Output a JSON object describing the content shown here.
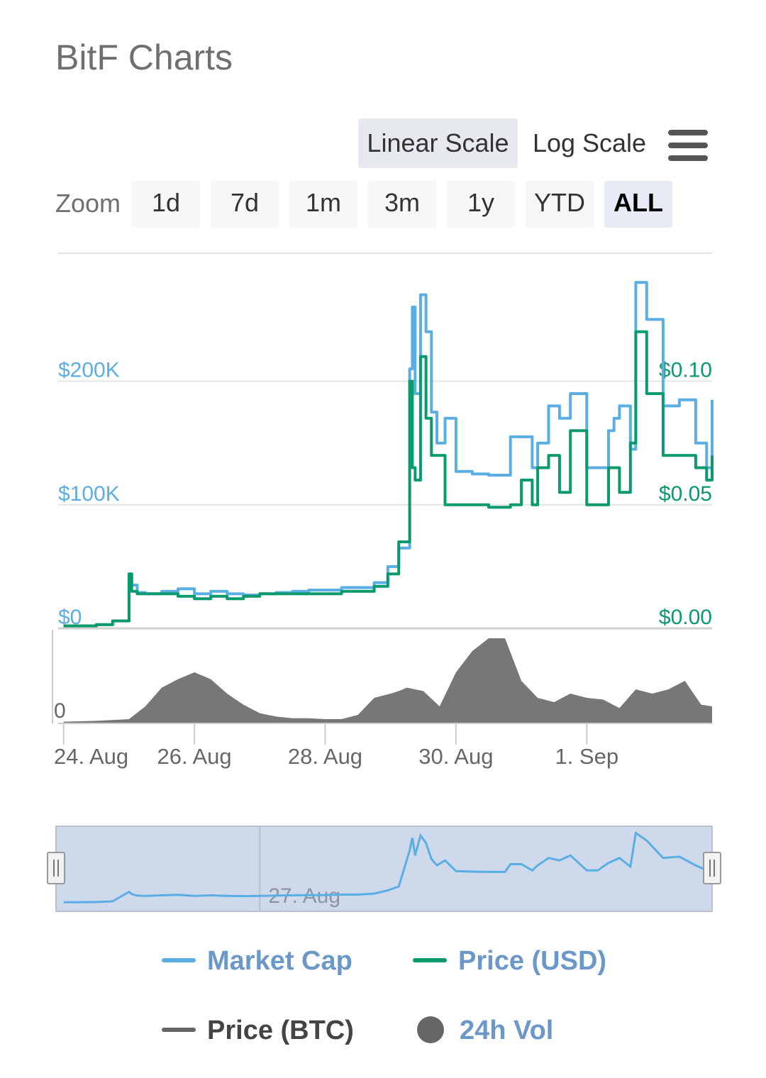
{
  "page": {
    "title": "BitF Charts"
  },
  "controls": {
    "scale_buttons": [
      {
        "label": "Linear Scale",
        "active": true
      },
      {
        "label": "Log Scale",
        "active": false
      }
    ],
    "menu_icon": "hamburger-menu-icon",
    "zoom_label": "Zoom",
    "zoom_buttons": [
      {
        "label": "1d",
        "active": false
      },
      {
        "label": "7d",
        "active": false
      },
      {
        "label": "1m",
        "active": false
      },
      {
        "label": "3m",
        "active": false
      },
      {
        "label": "1y",
        "active": false
      },
      {
        "label": "YTD",
        "active": false
      },
      {
        "label": "ALL",
        "active": true
      }
    ]
  },
  "colors": {
    "market_cap": "#5aaee3",
    "price_usd": "#0b9a6d",
    "price_btc": "#666666",
    "volume": "#777777",
    "legend_text": "#6b97c9",
    "navigator_fill": "#cfd9ec"
  },
  "chart_data": {
    "type": "line",
    "x_axis": {
      "start": "2018-08-23T22:00",
      "end": "2018-09-02T22:00",
      "ticks": [
        "24. Aug",
        "26. Aug",
        "28. Aug",
        "30. Aug",
        "1. Sep"
      ],
      "tick_dates": [
        "2018-08-24",
        "2018-08-26",
        "2018-08-28",
        "2018-08-30",
        "2018-09-01"
      ]
    },
    "y_left": {
      "label_values": [
        "$0",
        "$100K",
        "$200K"
      ],
      "tick_values": [
        0,
        100000,
        200000
      ]
    },
    "y_right": {
      "label_values": [
        "$0.00",
        "$0.05",
        "$0.10"
      ],
      "tick_values": [
        0,
        0.05,
        0.1
      ]
    },
    "volume_axis": {
      "label": "0"
    },
    "grid": true,
    "legend_position": "bottom",
    "series": [
      {
        "name": "Market Cap",
        "axis": "left",
        "x": [
          "08-24 00:00",
          "08-24 12:00",
          "08-24 18:00",
          "08-25 00:00",
          "08-25 01:00",
          "08-25 03:00",
          "08-25 06:00",
          "08-25 12:00",
          "08-25 18:00",
          "08-26 00:00",
          "08-26 06:00",
          "08-26 12:00",
          "08-26 18:00",
          "08-27 00:00",
          "08-27 06:00",
          "08-27 12:00",
          "08-27 18:00",
          "08-28 00:00",
          "08-28 06:00",
          "08-28 12:00",
          "08-28 18:00",
          "08-28 23:00",
          "08-29 03:00",
          "08-29 07:00",
          "08-29 08:00",
          "08-29 09:00",
          "08-29 11:00",
          "08-29 13:00",
          "08-29 15:00",
          "08-29 17:00",
          "08-29 20:00",
          "08-30 00:00",
          "08-30 06:00",
          "08-30 12:00",
          "08-30 18:00",
          "08-30 20:00",
          "08-31 00:00",
          "08-31 04:00",
          "08-31 06:00",
          "08-31 10:00",
          "08-31 14:00",
          "08-31 18:00",
          "09-01 00:00",
          "09-01 04:00",
          "09-01 08:00",
          "09-01 10:00",
          "09-01 12:00",
          "09-01 16:00",
          "09-01 18:00",
          "09-01 22:00",
          "09-02 04:00",
          "09-02 10:00",
          "09-02 16:00",
          "09-02 20:00",
          "09-02 22:00"
        ],
        "y": [
          2000,
          3000,
          6000,
          44000,
          35000,
          29000,
          28000,
          30000,
          32000,
          28000,
          30000,
          28000,
          27000,
          28000,
          29000,
          30000,
          31000,
          31000,
          33000,
          33000,
          37000,
          50000,
          65000,
          210000,
          260000,
          190000,
          270000,
          240000,
          175000,
          150000,
          170000,
          127000,
          125000,
          124000,
          124000,
          155000,
          155000,
          130000,
          150000,
          180000,
          170000,
          190000,
          130000,
          130000,
          160000,
          170000,
          180000,
          145000,
          280000,
          250000,
          180000,
          185000,
          150000,
          130000,
          185000
        ]
      },
      {
        "name": "Price (USD)",
        "axis": "right",
        "x": [
          "08-24 00:00",
          "08-24 12:00",
          "08-24 18:00",
          "08-25 00:00",
          "08-25 01:00",
          "08-25 03:00",
          "08-25 06:00",
          "08-25 12:00",
          "08-25 18:00",
          "08-26 00:00",
          "08-26 06:00",
          "08-26 12:00",
          "08-26 18:00",
          "08-27 00:00",
          "08-27 06:00",
          "08-27 12:00",
          "08-27 18:00",
          "08-28 00:00",
          "08-28 06:00",
          "08-28 12:00",
          "08-28 18:00",
          "08-28 23:00",
          "08-29 03:00",
          "08-29 07:00",
          "08-29 08:00",
          "08-29 09:00",
          "08-29 11:00",
          "08-29 13:00",
          "08-29 15:00",
          "08-29 17:00",
          "08-29 20:00",
          "08-30 00:00",
          "08-30 06:00",
          "08-30 12:00",
          "08-30 18:00",
          "08-30 20:00",
          "08-31 00:00",
          "08-31 04:00",
          "08-31 06:00",
          "08-31 10:00",
          "08-31 14:00",
          "08-31 18:00",
          "09-01 00:00",
          "09-01 04:00",
          "09-01 08:00",
          "09-01 10:00",
          "09-01 12:00",
          "09-01 16:00",
          "09-01 18:00",
          "09-01 22:00",
          "09-02 04:00",
          "09-02 10:00",
          "09-02 16:00",
          "09-02 20:00",
          "09-02 22:00"
        ],
        "y": [
          0.001,
          0.0015,
          0.003,
          0.022,
          0.015,
          0.014,
          0.014,
          0.014,
          0.013,
          0.012,
          0.013,
          0.012,
          0.013,
          0.014,
          0.014,
          0.014,
          0.014,
          0.014,
          0.015,
          0.015,
          0.017,
          0.022,
          0.035,
          0.1,
          0.065,
          0.06,
          0.11,
          0.085,
          0.07,
          0.07,
          0.05,
          0.05,
          0.05,
          0.049,
          0.049,
          0.05,
          0.06,
          0.05,
          0.065,
          0.07,
          0.055,
          0.08,
          0.05,
          0.05,
          0.065,
          0.065,
          0.055,
          0.075,
          0.12,
          0.095,
          0.07,
          0.07,
          0.065,
          0.06,
          0.07
        ]
      },
      {
        "name": "24h Vol",
        "type": "area",
        "axis": "volume",
        "x": [
          "08-24 00:00",
          "08-24 12:00",
          "08-25 00:00",
          "08-25 06:00",
          "08-25 12:00",
          "08-25 18:00",
          "08-26 00:00",
          "08-26 06:00",
          "08-26 12:00",
          "08-26 18:00",
          "08-27 00:00",
          "08-27 06:00",
          "08-27 12:00",
          "08-27 18:00",
          "08-28 00:00",
          "08-28 06:00",
          "08-28 12:00",
          "08-28 18:00",
          "08-29 00:00",
          "08-29 03:00",
          "08-29 06:00",
          "08-29 12:00",
          "08-29 18:00",
          "08-30 00:00",
          "08-30 06:00",
          "08-30 12:00",
          "08-30 18:00",
          "08-31 00:00",
          "08-31 06:00",
          "08-31 12:00",
          "08-31 18:00",
          "09-01 00:00",
          "09-01 06:00",
          "09-01 12:00",
          "09-01 18:00",
          "09-02 00:00",
          "09-02 06:00",
          "09-02 12:00",
          "09-02 18:00",
          "09-02 22:00"
        ],
        "y": [
          0.02,
          0.03,
          0.05,
          0.2,
          0.42,
          0.52,
          0.6,
          0.52,
          0.35,
          0.22,
          0.12,
          0.08,
          0.06,
          0.06,
          0.05,
          0.05,
          0.1,
          0.3,
          0.35,
          0.38,
          0.42,
          0.38,
          0.2,
          0.6,
          0.85,
          1.0,
          1.0,
          0.5,
          0.3,
          0.25,
          0.35,
          0.3,
          0.28,
          0.18,
          0.4,
          0.35,
          0.4,
          0.5,
          0.22,
          0.2
        ]
      }
    ],
    "legend": [
      {
        "name": "Market Cap",
        "marker": "line"
      },
      {
        "name": "Price (USD)",
        "marker": "line"
      },
      {
        "name": "Price (BTC)",
        "marker": "line"
      },
      {
        "name": "24h Vol",
        "marker": "dot"
      }
    ],
    "navigator": {
      "label": "27. Aug",
      "selection": "all"
    }
  }
}
